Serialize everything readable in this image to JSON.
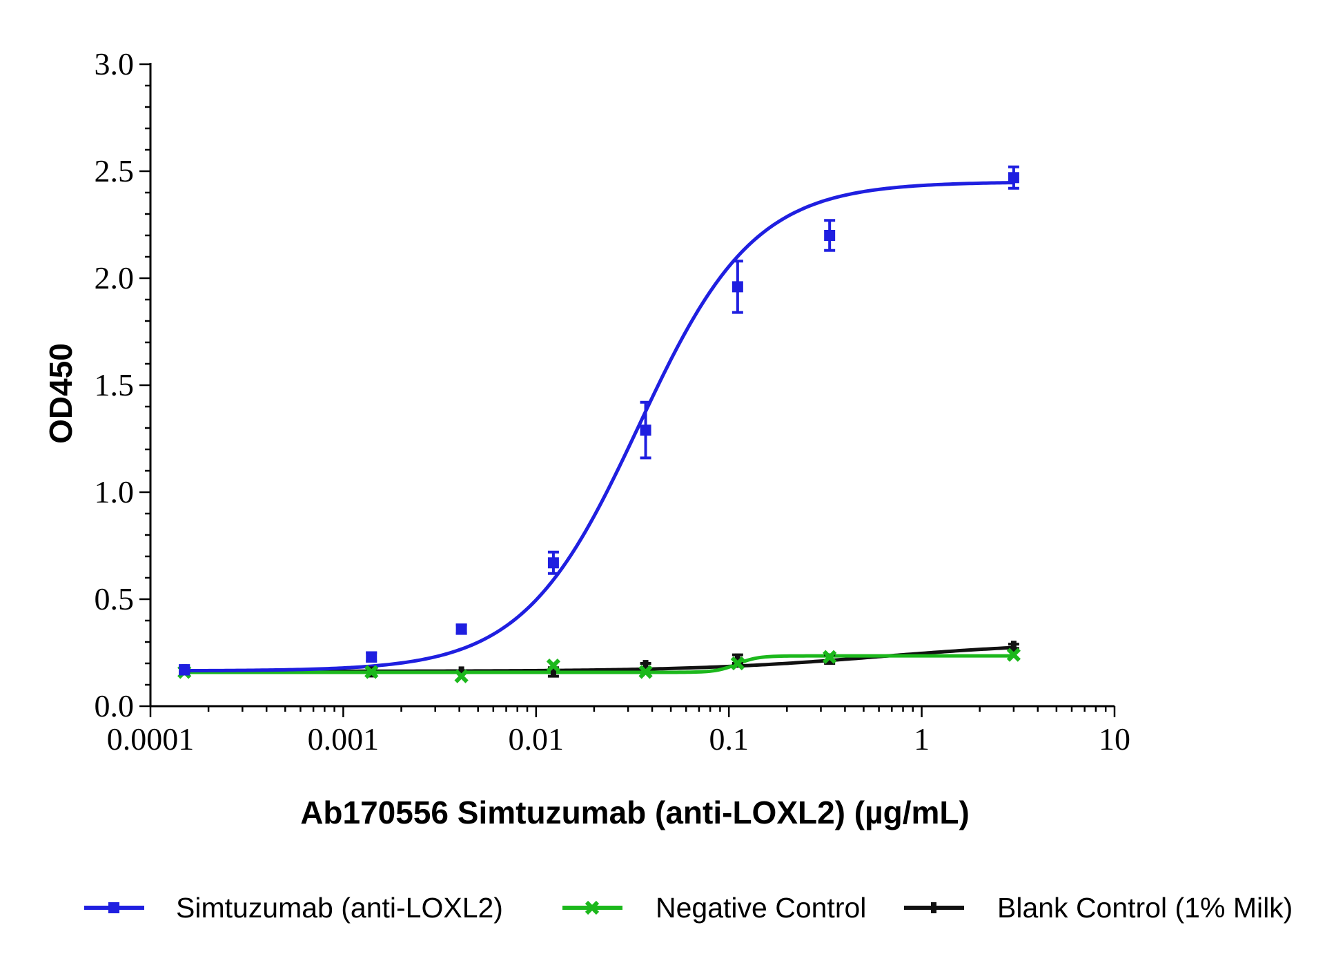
{
  "chart_data": {
    "type": "line",
    "title": "",
    "xlabel": "Ab170556 Simtuzumab (anti-LOXL2) (µg/mL)",
    "ylabel": "OD450",
    "x_scale": "log",
    "xlim": [
      0.0001,
      10
    ],
    "ylim": [
      0.0,
      3.0
    ],
    "x_tick_labels": [
      "0.0001",
      "0.001",
      "0.01",
      "0.1",
      "1",
      "10"
    ],
    "y_tick_labels": [
      "0.0",
      "0.5",
      "1.0",
      "1.5",
      "2.0",
      "2.5",
      "3.0"
    ],
    "grid": false,
    "legend_position": "bottom",
    "x": [
      0.00015,
      0.0014,
      0.0041,
      0.0123,
      0.037,
      0.111,
      0.333,
      3
    ],
    "series": [
      {
        "name": "Simtuzumab (anti-LOXL2)",
        "color": "#1f1fe0",
        "marker": "square",
        "values": [
          0.17,
          0.23,
          0.36,
          0.67,
          1.29,
          1.96,
          2.2,
          2.47
        ],
        "errors": [
          0.02,
          0.02,
          0.02,
          0.05,
          0.13,
          0.12,
          0.07,
          0.05
        ],
        "fit": {
          "bottom": 0.165,
          "top": 2.45,
          "ec50": 0.034,
          "hill": 1.45
        }
      },
      {
        "name": "Negative Control",
        "color": "#1cb81c",
        "marker": "x",
        "values": [
          0.16,
          0.16,
          0.14,
          0.19,
          0.16,
          0.2,
          0.23,
          0.24
        ],
        "errors": [
          0.0,
          0.0,
          0.0,
          0.0,
          0.0,
          0.0,
          0.0,
          0.0
        ],
        "fit": {
          "bottom": 0.158,
          "top": 0.235,
          "ec50": 0.11,
          "hill": 8
        }
      },
      {
        "name": "Blank Control (1% Milk)",
        "color": "#111111",
        "marker": "dash",
        "values": [
          0.17,
          0.16,
          0.16,
          0.16,
          0.19,
          0.22,
          0.22,
          0.28
        ],
        "errors": [
          0.01,
          0.0,
          0.0,
          0.02,
          0.01,
          0.02,
          0.02,
          0.01
        ],
        "fit": {
          "bottom": 0.163,
          "top": 0.3,
          "ec50": 0.6,
          "hill": 0.9
        }
      }
    ]
  }
}
